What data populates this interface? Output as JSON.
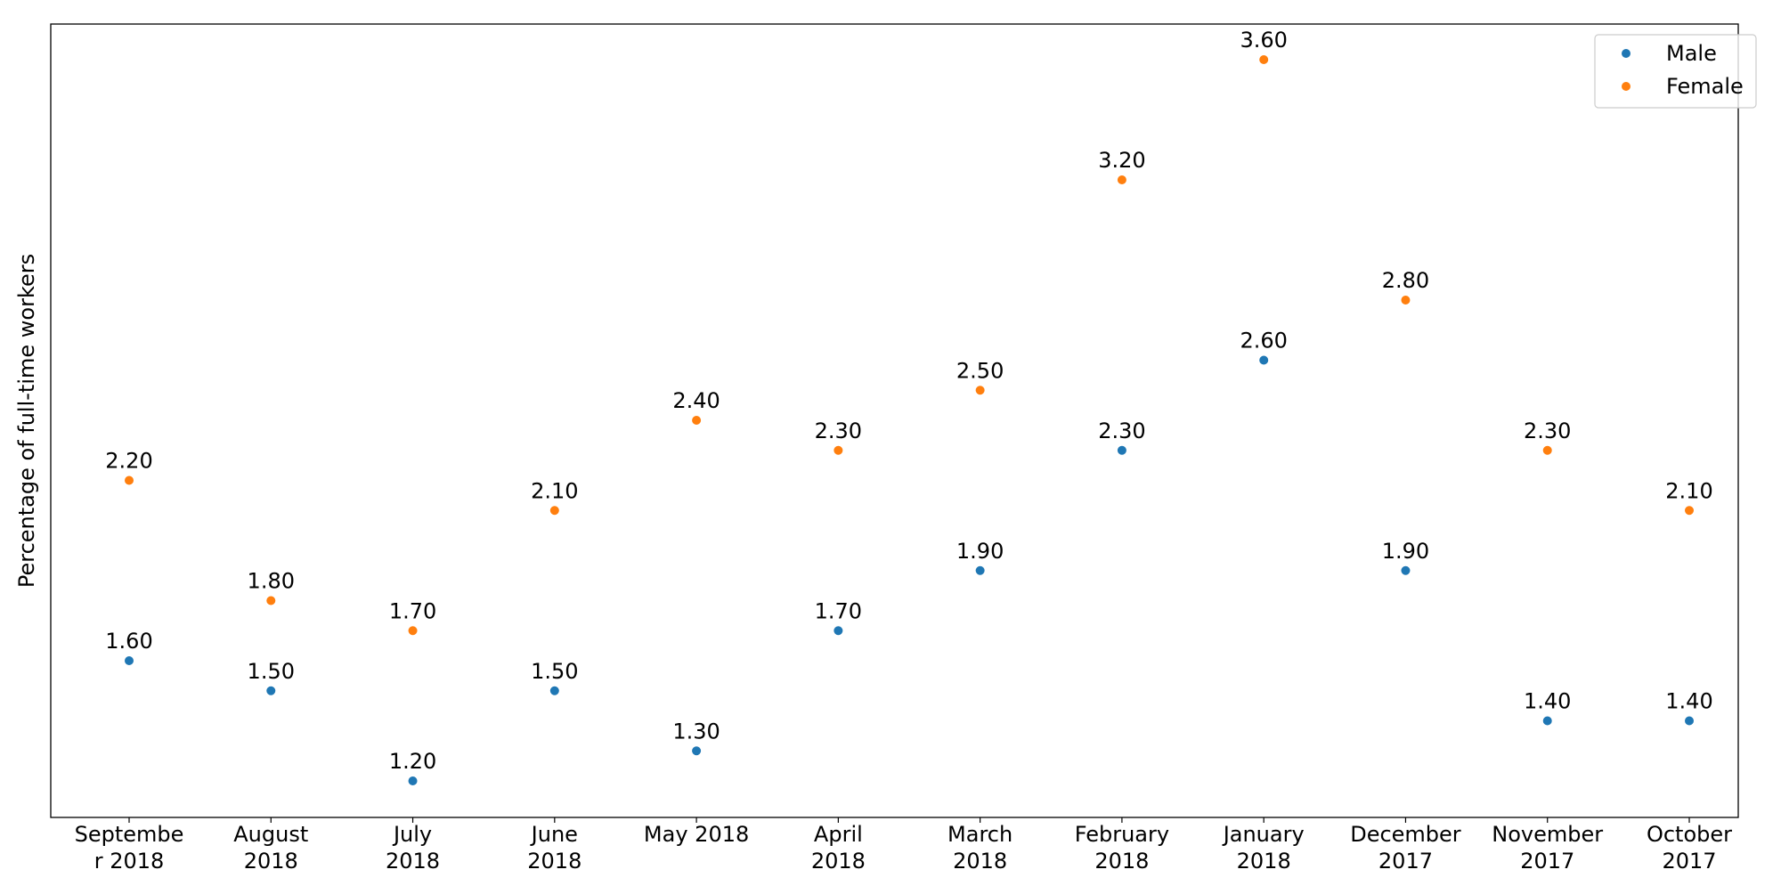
{
  "chart_data": {
    "type": "scatter",
    "title": "",
    "xlabel": "",
    "ylabel": "Percentage of full-time workers",
    "categories": [
      "September 2018",
      "August 2018",
      "July 2018",
      "June 2018",
      "May 2018",
      "April 2018",
      "March 2018",
      "February 2018",
      "January 2018",
      "December 2017",
      "November 2017",
      "October 2017"
    ],
    "tick_labels": [
      [
        "Septembe",
        "r 2018"
      ],
      [
        "August",
        "2018"
      ],
      [
        "July",
        "2018"
      ],
      [
        "June",
        "2018"
      ],
      [
        "May 2018"
      ],
      [
        "April",
        "2018"
      ],
      [
        "March",
        "2018"
      ],
      [
        "February",
        "2018"
      ],
      [
        "January",
        "2018"
      ],
      [
        "December",
        "2017"
      ],
      [
        "November",
        "2017"
      ],
      [
        "October",
        "2017"
      ]
    ],
    "series": [
      {
        "name": "Male",
        "color": "#1f77b4",
        "values": [
          1.6,
          1.5,
          1.2,
          1.5,
          1.3,
          1.7,
          1.9,
          2.3,
          2.6,
          1.9,
          1.4,
          1.4
        ],
        "labels": [
          "1.60",
          "1.50",
          "1.20",
          "1.50",
          "1.30",
          "1.70",
          "1.90",
          "2.30",
          "2.60",
          "1.90",
          "1.40",
          "1.40"
        ]
      },
      {
        "name": "Female",
        "color": "#ff7f0e",
        "values": [
          2.2,
          1.8,
          1.7,
          2.1,
          2.4,
          2.3,
          2.5,
          3.2,
          3.6,
          2.8,
          2.3,
          2.1
        ],
        "labels": [
          "2.20",
          "1.80",
          "1.70",
          "2.10",
          "2.40",
          "2.30",
          "2.50",
          "3.20",
          "3.60",
          "2.80",
          "2.30",
          "2.10"
        ]
      }
    ],
    "ylim": [
      0.95,
      3.6
    ],
    "y_ticks_visible": false,
    "grid": false,
    "legend_position": "top-right"
  }
}
